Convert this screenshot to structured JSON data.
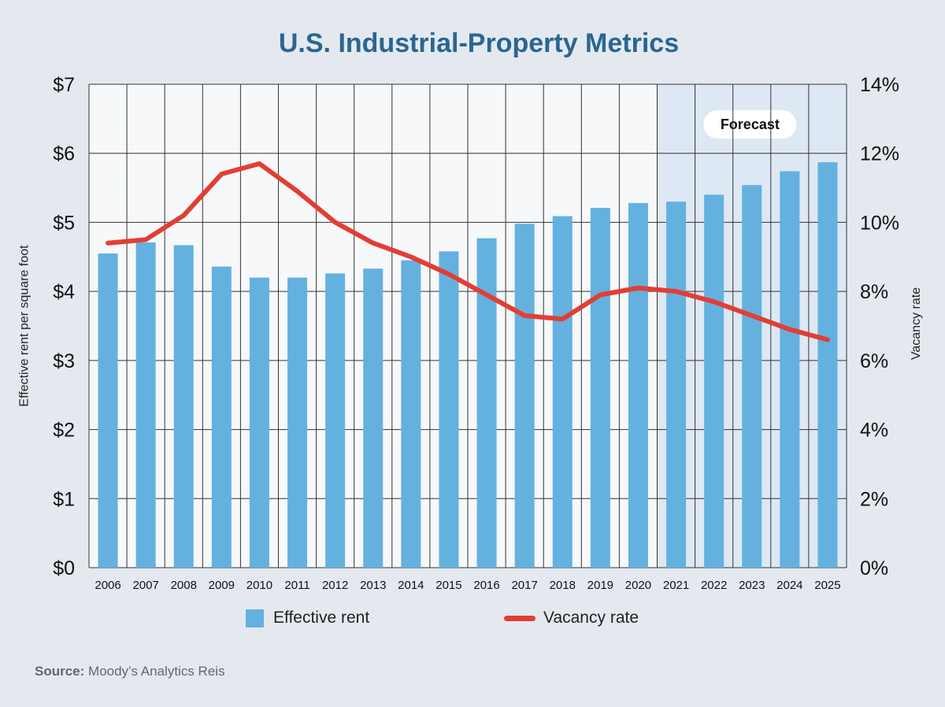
{
  "chart_data": {
    "type": "bar",
    "title": "U.S. Industrial-Property Metrics",
    "categories": [
      "2006",
      "2007",
      "2008",
      "2009",
      "2010",
      "2011",
      "2012",
      "2013",
      "2014",
      "2015",
      "2016",
      "2017",
      "2018",
      "2019",
      "2020",
      "2021",
      "2022",
      "2023",
      "2024",
      "2025"
    ],
    "series": [
      {
        "name": "Effective rent",
        "type": "bar",
        "axis": "left",
        "color": "#64b1e0",
        "values": [
          4.55,
          4.71,
          4.67,
          4.36,
          4.2,
          4.2,
          4.26,
          4.33,
          4.45,
          4.58,
          4.77,
          4.98,
          5.09,
          5.21,
          5.28,
          5.3,
          5.4,
          5.54,
          5.74,
          5.87
        ]
      },
      {
        "name": "Vacancy rate",
        "type": "line",
        "axis": "right",
        "color": "#e23e34",
        "values": [
          9.4,
          9.5,
          10.2,
          11.4,
          11.7,
          10.9,
          10.0,
          9.4,
          9.0,
          8.5,
          7.9,
          7.3,
          7.2,
          7.9,
          8.1,
          8.0,
          7.7,
          7.3,
          6.9,
          6.6
        ]
      }
    ],
    "ylabel": "Effective rent per square foot",
    "y2label": "Vacancy rate",
    "ylim": [
      0,
      7
    ],
    "y2lim": [
      0,
      14
    ],
    "yticks": [
      "$0",
      "$1",
      "$2",
      "$3",
      "$4",
      "$5",
      "$6",
      "$7"
    ],
    "y2ticks": [
      "0%",
      "2%",
      "4%",
      "6%",
      "8%",
      "10%",
      "12%",
      "14%"
    ],
    "forecast": {
      "label": "Forecast",
      "start": "2021",
      "end": "2025"
    },
    "grid": true,
    "legend_position": "bottom"
  },
  "source": {
    "label": "Source:",
    "text": "Moody’s Analytics Reis"
  },
  "colors": {
    "background": "#e4e9f0",
    "plot_area": "#f6f8fa",
    "forecast_shade": "#dde8f4",
    "title": "#2a6690",
    "grid": "#333333"
  }
}
